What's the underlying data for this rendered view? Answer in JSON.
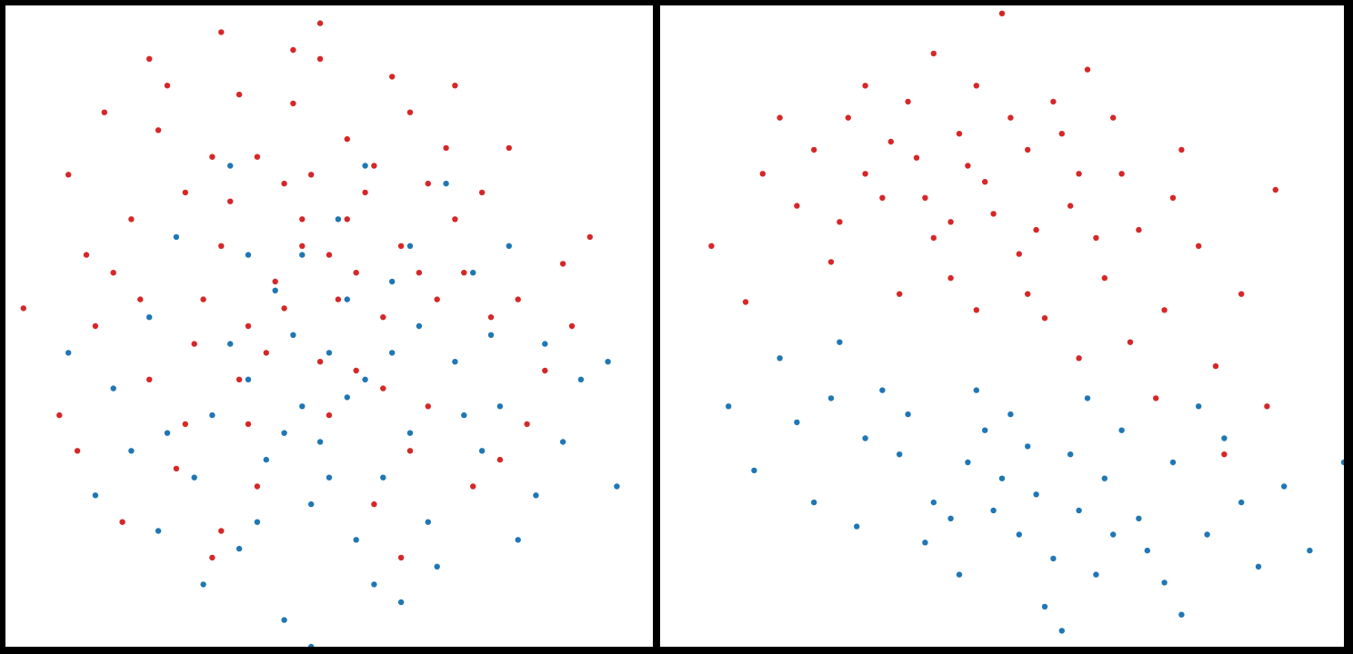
{
  "colors": {
    "red_series": "#d62728",
    "blue_series": "#1f77b4",
    "background": "#ffffff",
    "border": "#000000"
  },
  "chart_data": [
    {
      "type": "scatter",
      "title": "",
      "xlabel": "",
      "ylabel": "",
      "grid": false,
      "axes_visible": false,
      "xlim": [
        -3.6,
        3.6
      ],
      "ylim": [
        -3.6,
        3.6
      ],
      "series": [
        {
          "color": "#d62728",
          "points": [
            [
              0,
              0.8
            ],
            [
              -0.3,
              1.2
            ],
            [
              0.4,
              1.5
            ],
            [
              -0.8,
              1.9
            ],
            [
              0.2,
              2.1
            ],
            [
              -1.2,
              0.9
            ],
            [
              1.0,
              0.6
            ],
            [
              -0.5,
              0.2
            ],
            [
              0.6,
              0.1
            ],
            [
              -1.6,
              1.5
            ],
            [
              1.4,
              1.2
            ],
            [
              -2.2,
              1.2
            ],
            [
              -1.0,
              2.6
            ],
            [
              0.9,
              2.4
            ],
            [
              -0.1,
              3.0
            ],
            [
              -1.4,
              0.3
            ],
            [
              1.8,
              0.1
            ],
            [
              -2.6,
              0.0
            ],
            [
              -2.0,
              -0.6
            ],
            [
              0.3,
              -0.5
            ],
            [
              -0.9,
              -1.1
            ],
            [
              1.1,
              -0.9
            ],
            [
              -1.7,
              -1.6
            ],
            [
              2.2,
              -1.1
            ],
            [
              -3.4,
              0.2
            ],
            [
              -1.2,
              3.3
            ],
            [
              -0.1,
              3.4
            ],
            [
              2.0,
              2.0
            ],
            [
              -2.8,
              -1.4
            ],
            [
              0.5,
              -2.0
            ],
            [
              -1.3,
              -2.6
            ],
            [
              1.6,
              -1.8
            ],
            [
              -0.6,
              0.5
            ],
            [
              0.8,
              0.9
            ],
            [
              -0.2,
              1.7
            ],
            [
              -1.9,
              2.2
            ],
            [
              1.3,
              2.0
            ],
            [
              -2.4,
              0.6
            ],
            [
              2.6,
              0.7
            ],
            [
              -0.7,
              -0.3
            ],
            [
              0.1,
              0.3
            ],
            [
              -1.1,
              1.4
            ],
            [
              0.5,
              1.8
            ],
            [
              -0.4,
              2.5
            ],
            [
              1.7,
              1.5
            ],
            [
              -2.9,
              1.7
            ],
            [
              -1.5,
              -0.2
            ],
            [
              2.4,
              -0.5
            ],
            [
              0.0,
              -1.0
            ],
            [
              -0.8,
              -1.8
            ],
            [
              0.9,
              -1.4
            ],
            [
              -2.3,
              -2.2
            ],
            [
              1.2,
              0.3
            ],
            [
              -0.3,
              0.9
            ],
            [
              0.7,
              2.8
            ],
            [
              -1.8,
              2.7
            ],
            [
              2.9,
              1.0
            ],
            [
              -2.5,
              2.4
            ],
            [
              0.3,
              0.6
            ],
            [
              -0.9,
              0.0
            ],
            [
              1.5,
              0.6
            ],
            [
              -1.0,
              -0.6
            ],
            [
              0.2,
              1.2
            ],
            [
              -0.5,
              1.6
            ],
            [
              -1.3,
              1.9
            ],
            [
              1.1,
              1.6
            ],
            [
              -2.1,
              0.3
            ],
            [
              2.1,
              0.3
            ],
            [
              -0.1,
              -0.4
            ],
            [
              0.6,
              -0.7
            ],
            [
              -1.6,
              -1.1
            ],
            [
              1.9,
              -1.5
            ],
            [
              -3.0,
              -1.0
            ],
            [
              -0.4,
              3.1
            ],
            [
              1.4,
              2.7
            ],
            [
              -2.7,
              0.8
            ],
            [
              2.7,
              0.0
            ],
            [
              -1.2,
              -2.3
            ],
            [
              0.8,
              -2.6
            ],
            [
              -2.0,
              3.0
            ]
          ]
        },
        {
          "color": "#1f77b4",
          "points": [
            [
              0,
              -0.3
            ],
            [
              0.4,
              -0.6
            ],
            [
              -0.3,
              -0.9
            ],
            [
              0.9,
              -1.2
            ],
            [
              -0.7,
              -1.5
            ],
            [
              1.4,
              -0.4
            ],
            [
              0.2,
              0.3
            ],
            [
              -1.1,
              -0.2
            ],
            [
              0.7,
              0.5
            ],
            [
              -0.2,
              -2.0
            ],
            [
              1.1,
              -2.2
            ],
            [
              -1.0,
              -2.5
            ],
            [
              1.9,
              -0.9
            ],
            [
              -1.8,
              -1.2
            ],
            [
              0.5,
              -2.9
            ],
            [
              -0.5,
              -3.3
            ],
            [
              2.4,
              -0.2
            ],
            [
              2.8,
              -0.6
            ],
            [
              -2.4,
              -0.7
            ],
            [
              1.6,
              0.6
            ],
            [
              0.1,
              1.2
            ],
            [
              -0.9,
              0.8
            ],
            [
              1.3,
              1.6
            ],
            [
              -1.4,
              -2.9
            ],
            [
              2.3,
              -1.9
            ],
            [
              -2.6,
              -1.9
            ],
            [
              0.8,
              -3.1
            ],
            [
              3.1,
              -0.4
            ],
            [
              -0.4,
              -0.1
            ],
            [
              0.6,
              -1.7
            ],
            [
              -1.3,
              -1.0
            ],
            [
              1.7,
              -1.4
            ],
            [
              -0.1,
              -1.3
            ],
            [
              1.0,
              0.0
            ],
            [
              -0.6,
              0.4
            ],
            [
              0.3,
              -2.4
            ],
            [
              -2.0,
              0.1
            ],
            [
              2.0,
              0.9
            ],
            [
              -1.7,
              1.0
            ],
            [
              1.2,
              -2.7
            ],
            [
              -0.8,
              -2.2
            ],
            [
              2.6,
              -1.3
            ],
            [
              0.0,
              -1.7
            ],
            [
              -1.5,
              -1.7
            ],
            [
              1.5,
              -1.0
            ],
            [
              0.9,
              0.9
            ],
            [
              -0.3,
              0.8
            ],
            [
              0.4,
              1.8
            ],
            [
              -1.1,
              1.8
            ],
            [
              -2.9,
              -0.3
            ],
            [
              3.2,
              -1.8
            ],
            [
              -0.2,
              -3.6
            ],
            [
              2.1,
              -2.4
            ],
            [
              -1.9,
              -2.3
            ],
            [
              0.2,
              -0.8
            ],
            [
              -0.5,
              -1.2
            ],
            [
              1.8,
              -0.1
            ],
            [
              -2.2,
              -1.4
            ],
            [
              0.7,
              -0.3
            ],
            [
              -0.9,
              -0.6
            ]
          ]
        }
      ]
    },
    {
      "type": "scatter",
      "title": "",
      "xlabel": "",
      "ylabel": "",
      "grid": false,
      "axes_visible": false,
      "xlim": [
        -4.0,
        4.0
      ],
      "ylim": [
        -4.0,
        4.0
      ],
      "series": [
        {
          "color": "#d62728",
          "points": [
            [
              -1.0,
              2.1
            ],
            [
              -0.5,
              2.4
            ],
            [
              -0.2,
              1.8
            ],
            [
              0.3,
              2.2
            ],
            [
              -1.4,
              1.6
            ],
            [
              0.8,
              1.5
            ],
            [
              -0.8,
              1.1
            ],
            [
              0.2,
              0.9
            ],
            [
              -1.8,
              2.6
            ],
            [
              -0.3,
              3.0
            ],
            [
              0.6,
              2.8
            ],
            [
              -2.4,
              1.5
            ],
            [
              1.4,
              1.9
            ],
            [
              1.2,
              0.6
            ],
            [
              -1.2,
              0.4
            ],
            [
              1.9,
              0.2
            ],
            [
              0.5,
              0.1
            ],
            [
              -0.6,
              0.6
            ],
            [
              -2.0,
              0.8
            ],
            [
              2.3,
              1.0
            ],
            [
              -2.8,
              1.9
            ],
            [
              2.5,
              -0.5
            ],
            [
              1.8,
              -0.9
            ],
            [
              0.9,
              -0.4
            ],
            [
              -3.4,
              1.0
            ],
            [
              -0.8,
              3.4
            ],
            [
              0.0,
              3.9
            ],
            [
              1.0,
              3.2
            ],
            [
              -1.6,
              3.0
            ],
            [
              2.1,
              2.2
            ],
            [
              -2.6,
              2.6
            ],
            [
              1.6,
              1.2
            ],
            [
              -0.1,
              1.4
            ],
            [
              0.4,
              1.2
            ],
            [
              -1.1,
              2.8
            ],
            [
              -0.4,
              2.0
            ],
            [
              0.7,
              2.4
            ],
            [
              -1.6,
              1.9
            ],
            [
              0.1,
              2.6
            ],
            [
              -0.9,
              1.6
            ],
            [
              1.1,
              1.1
            ],
            [
              -1.9,
              1.3
            ],
            [
              2.8,
              0.4
            ],
            [
              3.1,
              -1.0
            ],
            [
              -2.2,
              2.2
            ],
            [
              1.5,
              -0.2
            ],
            [
              0.3,
              0.4
            ],
            [
              -0.3,
              0.2
            ],
            [
              2.0,
              1.6
            ],
            [
              -3.0,
              0.3
            ],
            [
              3.2,
              1.7
            ],
            [
              2.6,
              -1.6
            ],
            [
              1.3,
              2.6
            ],
            [
              -0.6,
              1.3
            ],
            [
              0.9,
              1.9
            ],
            [
              -1.3,
              2.3
            ]
          ]
        },
        {
          "color": "#1f77b4",
          "points": [
            [
              0,
              -1.9
            ],
            [
              0.4,
              -2.1
            ],
            [
              -0.4,
              -1.7
            ],
            [
              0.8,
              -1.6
            ],
            [
              -0.8,
              -2.2
            ],
            [
              1.2,
              -1.9
            ],
            [
              -1.2,
              -1.6
            ],
            [
              0.2,
              -2.6
            ],
            [
              -0.2,
              -1.3
            ],
            [
              1.6,
              -2.4
            ],
            [
              -1.6,
              -1.4
            ],
            [
              0.6,
              -2.9
            ],
            [
              -0.9,
              -2.7
            ],
            [
              2.0,
              -1.7
            ],
            [
              -2.0,
              -0.9
            ],
            [
              1.1,
              -3.1
            ],
            [
              2.4,
              -2.6
            ],
            [
              -2.4,
              -1.2
            ],
            [
              0.1,
              -1.1
            ],
            [
              1.4,
              -1.3
            ],
            [
              -1.4,
              -0.8
            ],
            [
              2.8,
              -2.2
            ],
            [
              3.0,
              -3.0
            ],
            [
              -2.6,
              -0.4
            ],
            [
              0.5,
              -3.5
            ],
            [
              1.9,
              -3.2
            ],
            [
              -1.7,
              -2.5
            ],
            [
              3.6,
              -2.8
            ],
            [
              -3.2,
              -1.0
            ],
            [
              -0.5,
              -3.1
            ],
            [
              2.3,
              -1.0
            ],
            [
              -2.9,
              -1.8
            ],
            [
              0.9,
              -2.3
            ],
            [
              -0.1,
              -2.3
            ],
            [
              1.7,
              -2.8
            ],
            [
              -1.1,
              -1.1
            ],
            [
              0.3,
              -1.5
            ],
            [
              -0.6,
              -2.4
            ],
            [
              1.3,
              -2.6
            ],
            [
              2.6,
              -1.4
            ],
            [
              -2.2,
              -2.2
            ],
            [
              1.0,
              -0.9
            ],
            [
              -0.3,
              -0.8
            ],
            [
              3.3,
              -2.0
            ],
            [
              -1.9,
              -0.2
            ],
            [
              2.1,
              -3.6
            ],
            [
              0.7,
              -3.8
            ],
            [
              4.0,
              -1.7
            ]
          ]
        }
      ]
    }
  ]
}
